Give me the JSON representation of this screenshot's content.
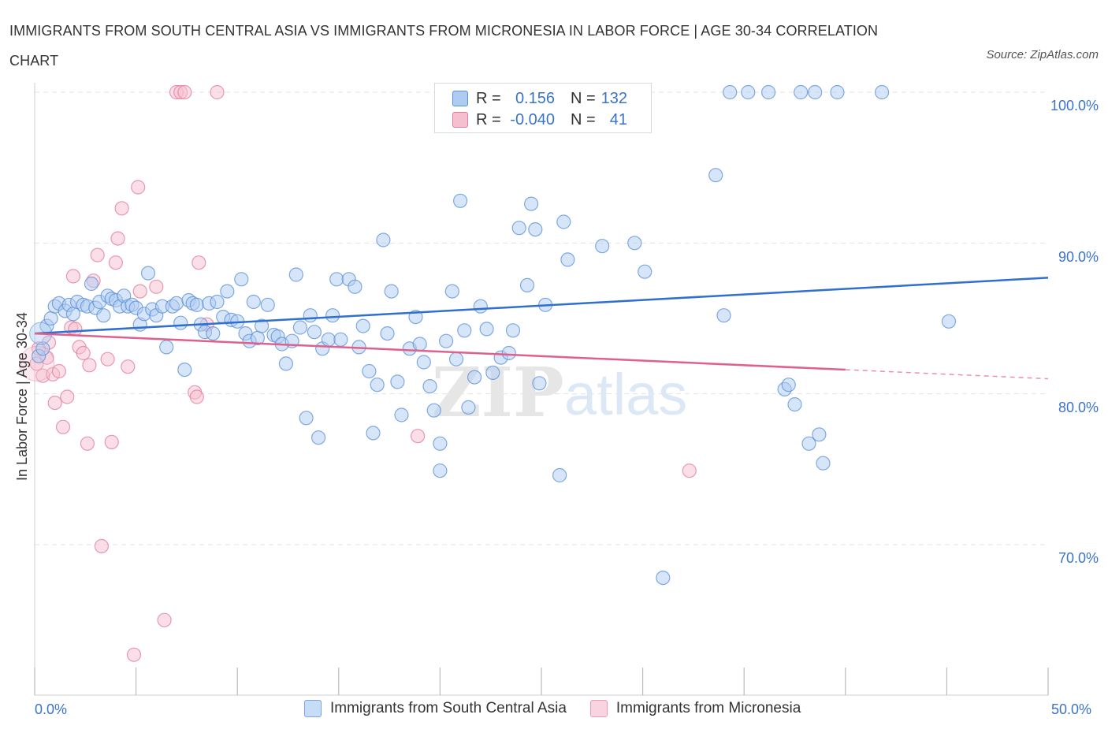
{
  "title": "IMMIGRANTS FROM SOUTH CENTRAL ASIA VS IMMIGRANTS FROM MICRONESIA IN LABOR FORCE | AGE 30-34 CORRELATION CHART",
  "source": "Source: ZipAtlas.com",
  "watermark": {
    "zip": "ZIP",
    "atlas": "atlas"
  },
  "legend_top": {
    "rows": [
      {
        "swatch": "blue",
        "r_label": "R =",
        "r_value": "0.156",
        "n_label": "N =",
        "n_value": "132"
      },
      {
        "swatch": "pink",
        "r_label": "R =",
        "r_value": "-0.040",
        "n_label": "N =",
        "n_value": "41"
      }
    ]
  },
  "colors": {
    "blue_fill": "#aecbf2",
    "blue_stroke": "#5b8fd8",
    "blue_line": "#2f6fcf",
    "pink_fill": "#f6bfd0",
    "pink_stroke": "#e27a9c",
    "pink_line": "#e0608d",
    "grid": "#e2e2e2",
    "axis_text": "#3a74c9"
  },
  "chart_data": {
    "type": "scatter",
    "title": "IMMIGRANTS FROM SOUTH CENTRAL ASIA VS IMMIGRANTS FROM MICRONESIA IN LABOR FORCE | AGE 30-34 CORRELATION CHART",
    "xlabel": "",
    "ylabel": "In Labor Force | Age 30-34",
    "xlim": [
      0,
      50
    ],
    "ylim": [
      61,
      101
    ],
    "x_tick_labels": [
      "0.0%",
      "50.0%"
    ],
    "y_ticks": [
      70,
      80,
      90,
      100
    ],
    "y_tick_labels": [
      "70.0%",
      "80.0%",
      "90.0%",
      "100.0%"
    ],
    "grid": true,
    "legend_position": "bottom",
    "series": [
      {
        "name": "Immigrants from South Central Asia",
        "color": "blue",
        "trend": {
          "x": [
            0,
            50
          ],
          "y": [
            84.0,
            87.7
          ]
        },
        "points": [
          [
            0.2,
            82.5
          ],
          [
            0.4,
            83.0
          ],
          [
            0.6,
            84.5
          ],
          [
            0.8,
            85.0
          ],
          [
            1.0,
            85.8
          ],
          [
            1.2,
            86.0
          ],
          [
            1.5,
            85.5
          ],
          [
            1.7,
            85.9
          ],
          [
            1.9,
            85.3
          ],
          [
            2.1,
            86.1
          ],
          [
            2.4,
            85.9
          ],
          [
            2.6,
            85.8
          ],
          [
            2.8,
            87.3
          ],
          [
            3.0,
            85.7
          ],
          [
            3.2,
            86.1
          ],
          [
            3.4,
            85.2
          ],
          [
            3.6,
            86.5
          ],
          [
            3.8,
            86.3
          ],
          [
            4.0,
            86.2
          ],
          [
            4.2,
            85.8
          ],
          [
            4.4,
            86.5
          ],
          [
            4.6,
            85.8
          ],
          [
            4.8,
            85.9
          ],
          [
            5.0,
            85.7
          ],
          [
            5.2,
            84.6
          ],
          [
            5.4,
            85.3
          ],
          [
            5.6,
            88.0
          ],
          [
            5.8,
            85.6
          ],
          [
            6.0,
            85.2
          ],
          [
            6.3,
            85.8
          ],
          [
            6.5,
            83.1
          ],
          [
            6.8,
            85.8
          ],
          [
            7.0,
            86.0
          ],
          [
            7.2,
            84.7
          ],
          [
            7.4,
            81.6
          ],
          [
            7.6,
            86.2
          ],
          [
            7.8,
            86.0
          ],
          [
            8.0,
            85.9
          ],
          [
            8.2,
            84.6
          ],
          [
            8.4,
            84.1
          ],
          [
            8.6,
            86.0
          ],
          [
            8.8,
            84.0
          ],
          [
            9.0,
            86.1
          ],
          [
            9.3,
            85.1
          ],
          [
            9.5,
            86.8
          ],
          [
            9.7,
            84.9
          ],
          [
            10.0,
            84.8
          ],
          [
            10.2,
            87.6
          ],
          [
            10.4,
            84.0
          ],
          [
            10.6,
            83.5
          ],
          [
            10.8,
            86.1
          ],
          [
            11.0,
            83.7
          ],
          [
            11.2,
            84.5
          ],
          [
            11.5,
            85.9
          ],
          [
            11.8,
            83.9
          ],
          [
            12.0,
            83.8
          ],
          [
            12.2,
            83.3
          ],
          [
            12.4,
            82.0
          ],
          [
            12.7,
            83.5
          ],
          [
            12.9,
            87.9
          ],
          [
            13.1,
            84.4
          ],
          [
            13.4,
            78.4
          ],
          [
            13.6,
            85.2
          ],
          [
            13.8,
            84.1
          ],
          [
            14.0,
            77.1
          ],
          [
            14.2,
            83.0
          ],
          [
            14.5,
            83.6
          ],
          [
            14.7,
            85.2
          ],
          [
            14.9,
            87.6
          ],
          [
            15.1,
            83.6
          ],
          [
            15.5,
            87.6
          ],
          [
            15.8,
            87.1
          ],
          [
            16.0,
            83.1
          ],
          [
            16.2,
            84.5
          ],
          [
            16.5,
            81.5
          ],
          [
            16.7,
            77.4
          ],
          [
            16.9,
            80.6
          ],
          [
            17.2,
            90.2
          ],
          [
            17.4,
            84.0
          ],
          [
            17.6,
            86.8
          ],
          [
            17.9,
            80.8
          ],
          [
            18.1,
            78.6
          ],
          [
            18.5,
            83.0
          ],
          [
            18.8,
            85.1
          ],
          [
            19.0,
            83.3
          ],
          [
            19.2,
            82.1
          ],
          [
            19.5,
            80.5
          ],
          [
            19.7,
            78.9
          ],
          [
            20.0,
            76.7
          ],
          [
            20.0,
            74.9
          ],
          [
            20.3,
            83.5
          ],
          [
            20.6,
            86.8
          ],
          [
            20.8,
            82.3
          ],
          [
            21.0,
            92.8
          ],
          [
            21.2,
            84.2
          ],
          [
            21.4,
            79.1
          ],
          [
            21.7,
            81.1
          ],
          [
            22.0,
            85.8
          ],
          [
            22.3,
            84.3
          ],
          [
            22.6,
            81.4
          ],
          [
            23.0,
            82.4
          ],
          [
            23.4,
            82.7
          ],
          [
            23.6,
            84.2
          ],
          [
            23.9,
            91.0
          ],
          [
            24.3,
            87.2
          ],
          [
            24.5,
            92.6
          ],
          [
            24.7,
            90.9
          ],
          [
            24.9,
            80.7
          ],
          [
            25.2,
            85.9
          ],
          [
            25.9,
            74.6
          ],
          [
            26.1,
            91.4
          ],
          [
            26.3,
            88.9
          ],
          [
            28.0,
            89.8
          ],
          [
            29.6,
            90.0
          ],
          [
            30.1,
            88.1
          ],
          [
            31.0,
            67.8
          ],
          [
            33.6,
            94.5
          ],
          [
            34.0,
            85.2
          ],
          [
            37.0,
            80.3
          ],
          [
            37.2,
            80.6
          ],
          [
            37.5,
            79.3
          ],
          [
            38.2,
            76.7
          ],
          [
            38.7,
            77.3
          ],
          [
            38.9,
            75.4
          ],
          [
            35.2,
            100
          ],
          [
            34.3,
            100
          ],
          [
            36.2,
            100
          ],
          [
            37.8,
            100
          ],
          [
            38.5,
            100
          ],
          [
            39.6,
            100
          ],
          [
            41.8,
            100
          ],
          [
            45.1,
            84.8
          ]
        ]
      },
      {
        "name": "Immigrants from Micronesia",
        "color": "pink",
        "trend": {
          "x": [
            0,
            40
          ],
          "y": [
            84.0,
            81.6
          ],
          "dashed_to": [
            50,
            81.0
          ]
        },
        "points": [
          [
            0.2,
            83.0
          ],
          [
            0.4,
            81.2
          ],
          [
            0.6,
            82.4
          ],
          [
            0.7,
            83.4
          ],
          [
            0.9,
            81.3
          ],
          [
            1.0,
            79.4
          ],
          [
            1.2,
            81.5
          ],
          [
            1.4,
            77.8
          ],
          [
            1.6,
            79.8
          ],
          [
            1.8,
            84.4
          ],
          [
            1.9,
            87.8
          ],
          [
            2.0,
            84.3
          ],
          [
            2.2,
            83.1
          ],
          [
            2.4,
            82.7
          ],
          [
            2.6,
            76.7
          ],
          [
            2.7,
            81.9
          ],
          [
            2.9,
            87.5
          ],
          [
            3.1,
            89.2
          ],
          [
            3.3,
            69.9
          ],
          [
            3.6,
            82.3
          ],
          [
            3.8,
            76.8
          ],
          [
            4.0,
            88.7
          ],
          [
            4.1,
            90.3
          ],
          [
            4.3,
            92.3
          ],
          [
            4.6,
            81.8
          ],
          [
            4.9,
            62.7
          ],
          [
            5.1,
            93.7
          ],
          [
            5.2,
            86.8
          ],
          [
            6.0,
            87.1
          ],
          [
            6.4,
            65.0
          ],
          [
            7.0,
            100
          ],
          [
            7.2,
            100
          ],
          [
            7.4,
            100
          ],
          [
            7.9,
            80.1
          ],
          [
            8.0,
            79.8
          ],
          [
            8.1,
            88.7
          ],
          [
            8.5,
            84.6
          ],
          [
            9.0,
            100
          ],
          [
            18.9,
            77.2
          ],
          [
            32.3,
            74.9
          ],
          [
            0.1,
            82.0
          ]
        ]
      }
    ]
  },
  "bottom_legend": [
    {
      "swatch": "blue",
      "label": "Immigrants from South Central Asia"
    },
    {
      "swatch": "pink",
      "label": "Immigrants from Micronesia"
    }
  ]
}
